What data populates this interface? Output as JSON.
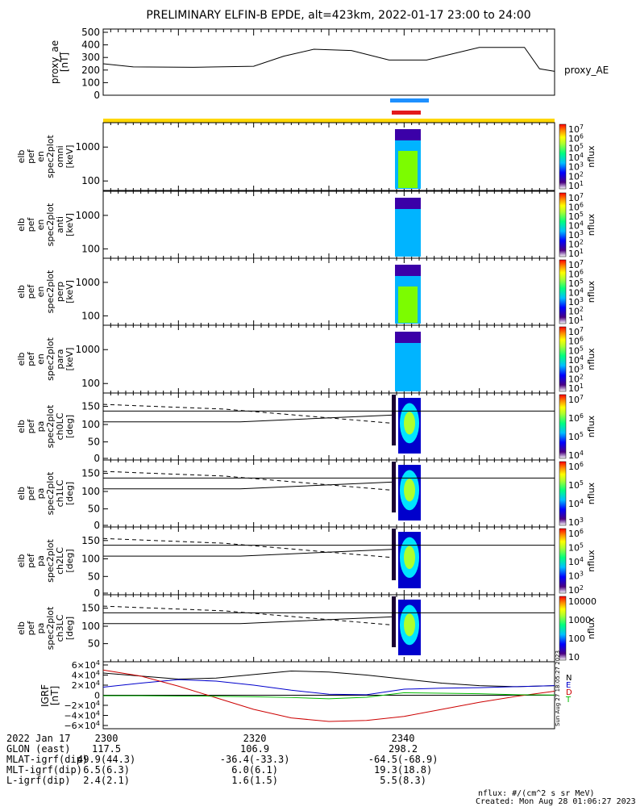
{
  "title": "PRELIMINARY ELFIN-B EPDE, alt=423km, 2022-01-17 23:00 to 24:00",
  "colors": {
    "blue_bar": "#1e90ff",
    "red_bar": "#e31a1c",
    "yellow_bar": "#ffd700",
    "igrf_n": "#000000",
    "igrf_e": "#0000cc",
    "igrf_d": "#cc0000",
    "igrf_total": "#00bb00"
  },
  "chart_data": [
    {
      "type": "line",
      "panel": "proxy_ae",
      "ylabel": [
        "proxy_ae",
        "[nT]"
      ],
      "legend": "proxy_AE",
      "yticks": [
        "500",
        "400",
        "300",
        "200",
        "100",
        "0"
      ],
      "ylim": [
        0,
        500
      ],
      "x_minutes": [
        0,
        4,
        12,
        20,
        24,
        28,
        33,
        38,
        43,
        50,
        56,
        58,
        60
      ],
      "values": [
        250,
        225,
        222,
        230,
        310,
        365,
        355,
        280,
        280,
        380,
        380,
        210,
        190
      ]
    },
    {
      "type": "heatmap",
      "panel": "omni",
      "ylabel": [
        "elb",
        "pef",
        "en",
        "spec2plot",
        "omni",
        "[keV]"
      ],
      "yticks": [
        "1000",
        "100"
      ],
      "colorbar_ticks": [
        "10^7",
        "10^6",
        "10^5",
        "10^4",
        "10^3",
        "10^2",
        "10^1"
      ],
      "colorbar_label": "nflux"
    },
    {
      "type": "heatmap",
      "panel": "anti",
      "ylabel": [
        "elb",
        "pef",
        "en",
        "spec2plot",
        "anti",
        "[keV]"
      ],
      "yticks": [
        "1000",
        "100"
      ],
      "colorbar_ticks": [
        "10^7",
        "10^6",
        "10^5",
        "10^4",
        "10^3",
        "10^2",
        "10^1"
      ],
      "colorbar_label": "nflux"
    },
    {
      "type": "heatmap",
      "panel": "perp",
      "ylabel": [
        "elb",
        "pef",
        "en",
        "spec2plot",
        "perp",
        "[keV]"
      ],
      "yticks": [
        "1000",
        "100"
      ],
      "colorbar_ticks": [
        "10^7",
        "10^6",
        "10^5",
        "10^4",
        "10^3",
        "10^2",
        "10^1"
      ],
      "colorbar_label": "nflux"
    },
    {
      "type": "heatmap",
      "panel": "para",
      "ylabel": [
        "elb",
        "pef",
        "en",
        "spec2plot",
        "para",
        "[keV]"
      ],
      "yticks": [
        "1000",
        "100"
      ],
      "colorbar_ticks": [
        "10^7",
        "10^6",
        "10^5",
        "10^4",
        "10^3",
        "10^2",
        "10^1"
      ],
      "colorbar_label": "nflux"
    },
    {
      "type": "heatmap",
      "panel": "ch0LC",
      "ylabel": [
        "elb",
        "pef",
        "pa",
        "spec2plot",
        "ch0LC",
        "[deg]"
      ],
      "yticks": [
        "150",
        "100",
        "50",
        "0"
      ],
      "colorbar_ticks": [
        "10^7",
        "10^6",
        "10^5",
        "10^4"
      ],
      "colorbar_label": "nflux"
    },
    {
      "type": "heatmap",
      "panel": "ch1LC",
      "ylabel": [
        "elb",
        "pef",
        "pa",
        "spec2plot",
        "ch1LC",
        "[deg]"
      ],
      "yticks": [
        "150",
        "100",
        "50",
        "0"
      ],
      "colorbar_ticks": [
        "10^6",
        "10^5",
        "10^4",
        "10^3"
      ],
      "colorbar_label": "nflux"
    },
    {
      "type": "heatmap",
      "panel": "ch2LC",
      "ylabel": [
        "elb",
        "pef",
        "pa",
        "spec2plot",
        "ch2LC",
        "[deg]"
      ],
      "yticks": [
        "150",
        "100",
        "50",
        "0"
      ],
      "colorbar_ticks": [
        "10^6",
        "10^5",
        "10^4",
        "10^3",
        "10^2"
      ],
      "colorbar_label": "nflux"
    },
    {
      "type": "heatmap",
      "panel": "ch3LC",
      "ylabel": [
        "elb",
        "pef",
        "pa",
        "spec2plot",
        "ch3LC",
        "[deg]"
      ],
      "yticks": [
        "150",
        "100",
        "50"
      ],
      "colorbar_ticks": [
        "10000",
        "1000",
        "100",
        "10"
      ],
      "colorbar_label": "nflux"
    },
    {
      "type": "line",
      "panel": "IGRF",
      "ylabel": [
        "IGRF",
        "[nT]"
      ],
      "yticks": [
        "6×10^4",
        "4×10^4",
        "2×10^4",
        "0",
        "−2×10^4",
        "−4×10^4",
        "−6×10^4"
      ],
      "ylim": [
        -60000,
        60000
      ],
      "legend": [
        "N",
        "E",
        "D",
        "T"
      ],
      "x_minutes": [
        0,
        5,
        10,
        15,
        20,
        25,
        30,
        35,
        40,
        45,
        50,
        55,
        60
      ],
      "series": [
        {
          "name": "N",
          "values": [
            44000,
            38000,
            32000,
            34000,
            41000,
            48000,
            46000,
            40000,
            32000,
            24000,
            19000,
            17000,
            19000
          ]
        },
        {
          "name": "E",
          "values": [
            16000,
            24000,
            31000,
            28000,
            20000,
            10000,
            2000,
            1000,
            12000,
            14000,
            15000,
            17000,
            19000
          ]
        },
        {
          "name": "D",
          "values": [
            50000,
            38000,
            18000,
            -5000,
            -28000,
            -45000,
            -52000,
            -50000,
            -42000,
            -28000,
            -14000,
            -2000,
            8000
          ]
        },
        {
          "name": "T",
          "values": [
            -1000,
            -1000,
            -1500,
            -2000,
            -3000,
            -4500,
            -7000,
            -4000,
            5000,
            4000,
            3000,
            1000,
            500
          ]
        }
      ]
    }
  ],
  "x_axis": {
    "ticks": [
      "2300",
      "2320",
      "2340"
    ]
  },
  "footer": {
    "rows": [
      {
        "label": "2022 Jan 17",
        "c1": "",
        "c2": "",
        "c3": ""
      },
      {
        "label": "GLON (east)",
        "c1": "117.5",
        "c2": "106.9",
        "c3": "298.2"
      },
      {
        "label": "MLAT-igrf(dip)",
        "c1": "49.9(44.3)",
        "c2": "-36.4(-33.3)",
        "c3": "-64.5(-68.9)"
      },
      {
        "label": "MLT-igrf(dip)",
        "c1": "6.5(6.3)",
        "c2": "6.0(6.1)",
        "c3": "19.3(18.8)"
      },
      {
        "label": "L-igrf(dip)",
        "c1": "2.4(2.1)",
        "c2": "1.6(1.5)",
        "c3": "5.5(8.3)"
      }
    ],
    "units_note": "nflux: #/(cm^2 s sr MeV)",
    "created": "Created: Mon Aug 28 01:06:27 2023",
    "side_stamp": "Sun Aug 27 18:05:27 2023"
  }
}
